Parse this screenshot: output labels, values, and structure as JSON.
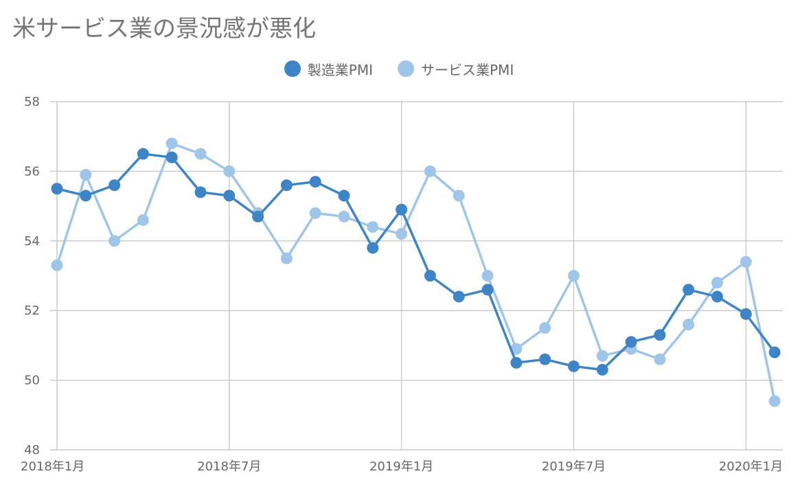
{
  "title": "米サービス業の景況感が悪化",
  "colors": {
    "manufacturing": "#3d85c6",
    "services": "#9fc5e8",
    "grid": "#cccccc",
    "axis_text": "#666666",
    "title_text": "#757575"
  },
  "chart_data": {
    "type": "line",
    "title": "米サービス業の景況感が悪化",
    "xlabel": "",
    "ylabel": "",
    "x_months": [
      "2018-01",
      "2018-02",
      "2018-03",
      "2018-04",
      "2018-05",
      "2018-06",
      "2018-07",
      "2018-08",
      "2018-09",
      "2018-10",
      "2018-11",
      "2018-12",
      "2019-01",
      "2019-02",
      "2019-03",
      "2019-04",
      "2019-05",
      "2019-06",
      "2019-07",
      "2019-08",
      "2019-09",
      "2019-10",
      "2019-11",
      "2019-12",
      "2020-01",
      "2020-02"
    ],
    "x_tick_labels": [
      "2018年1月",
      "2018年7月",
      "2019年1月",
      "2019年7月",
      "2020年1月"
    ],
    "x_tick_months": [
      "2018-01",
      "2018-07",
      "2019-01",
      "2019-07",
      "2020-01"
    ],
    "y_ticks": [
      "58",
      "56",
      "54",
      "52",
      "50",
      "48"
    ],
    "ylim": [
      48,
      58
    ],
    "grid": true,
    "legend_position": "top-center",
    "series": [
      {
        "name": "製造業PMI",
        "color": "#3d85c6",
        "values": [
          55.5,
          55.3,
          55.6,
          56.5,
          56.4,
          55.4,
          55.3,
          54.7,
          55.6,
          55.7,
          55.3,
          53.8,
          54.9,
          53.0,
          52.4,
          52.6,
          50.5,
          50.6,
          50.4,
          50.3,
          51.1,
          51.3,
          52.6,
          52.4,
          51.9,
          50.8
        ]
      },
      {
        "name": "サービス業PMI",
        "color": "#9fc5e8",
        "values": [
          53.3,
          55.9,
          54.0,
          54.6,
          56.8,
          56.5,
          56.0,
          54.8,
          53.5,
          54.8,
          54.7,
          54.4,
          54.2,
          56.0,
          55.3,
          53.0,
          50.9,
          51.5,
          53.0,
          50.7,
          50.9,
          50.6,
          51.6,
          52.8,
          53.4,
          49.4
        ]
      }
    ]
  }
}
